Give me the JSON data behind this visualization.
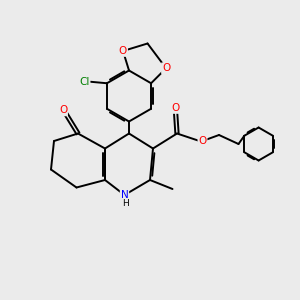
{
  "background_color": "#ebebeb",
  "bond_color": "#000000",
  "atom_colors": {
    "O": "#ff0000",
    "N": "#0000ff",
    "Cl": "#008000",
    "C": "#000000"
  },
  "figsize": [
    3.0,
    3.0
  ],
  "dpi": 100
}
